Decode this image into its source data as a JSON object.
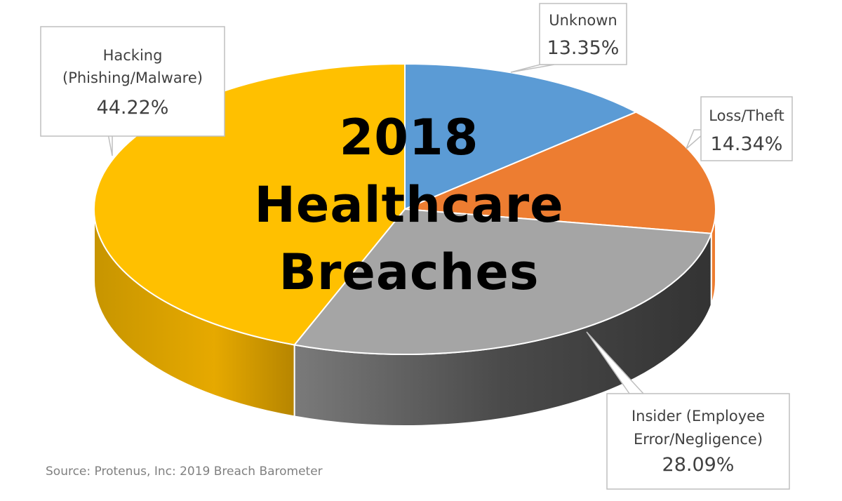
{
  "chart_data": {
    "type": "pie",
    "style": "3d",
    "title_lines": [
      "2018",
      "Healthcare",
      "Breaches"
    ],
    "slices": [
      {
        "id": "unknown",
        "label_lines": [
          "Unknown"
        ],
        "value": 13.35,
        "value_label": "13.35%",
        "color": "#5B9BD5"
      },
      {
        "id": "loss-theft",
        "label_lines": [
          "Loss/Theft"
        ],
        "value": 14.34,
        "value_label": "14.34%",
        "color": "#ED7D31"
      },
      {
        "id": "insider",
        "label_lines": [
          "Insider (Employee",
          "Error/Negligence)"
        ],
        "value": 28.09,
        "value_label": "28.09%",
        "color": "#A5A5A5"
      },
      {
        "id": "hacking",
        "label_lines": [
          "Hacking",
          "(Phishing/Malware)"
        ],
        "value": 44.22,
        "value_label": "44.22%",
        "color": "#FFC000"
      }
    ],
    "legend": "none"
  },
  "source": "Source: Protenus, Inc: 2019 Breach Barometer"
}
